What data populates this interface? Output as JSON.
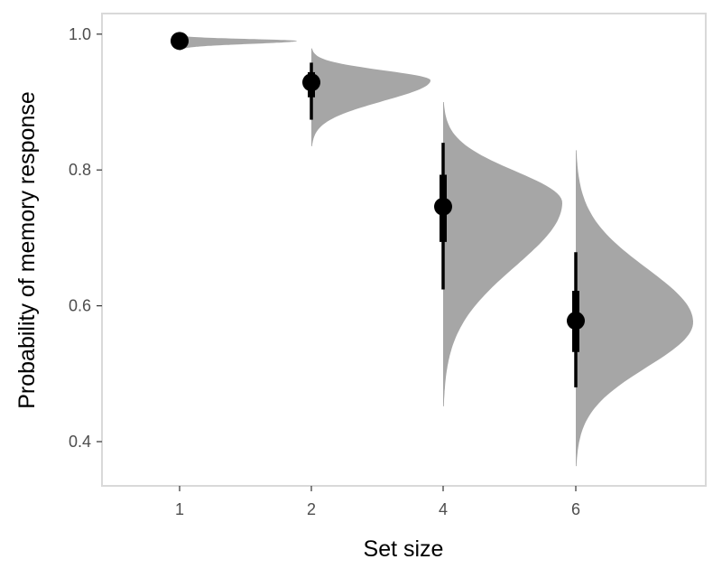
{
  "chart_data": {
    "type": "halfeye",
    "title": "",
    "xlabel": "Set size",
    "ylabel": "Probability of memory response",
    "categories": [
      "1",
      "2",
      "4",
      "6"
    ],
    "ylim": [
      0.33,
      1.03
    ],
    "yticks": [
      0.4,
      0.6,
      0.8,
      1.0
    ],
    "ytick_labels": [
      "0.4",
      "0.6",
      "0.8",
      "1.0"
    ],
    "grid": false,
    "series": [
      {
        "values": [
          0.99,
          0.929,
          0.746,
          0.578
        ],
        "interval_66": [
          [
            0.985,
            0.993
          ],
          [
            0.907,
            0.944
          ],
          [
            0.694,
            0.793
          ],
          [
            0.532,
            0.622
          ]
        ],
        "interval_95": [
          [
            0.98,
            0.996
          ],
          [
            0.874,
            0.958
          ],
          [
            0.624,
            0.84
          ],
          [
            0.48,
            0.679
          ]
        ],
        "density_range": [
          [
            0.976,
            0.999
          ],
          [
            0.835,
            0.979
          ],
          [
            0.452,
            0.9
          ],
          [
            0.364,
            0.829
          ]
        ],
        "density_peak": [
          0.99,
          0.932,
          0.752,
          0.576
        ]
      }
    ],
    "colors": {
      "density": "#a6a6a6",
      "point": "#000000",
      "frame": "#d9d9d9"
    }
  }
}
